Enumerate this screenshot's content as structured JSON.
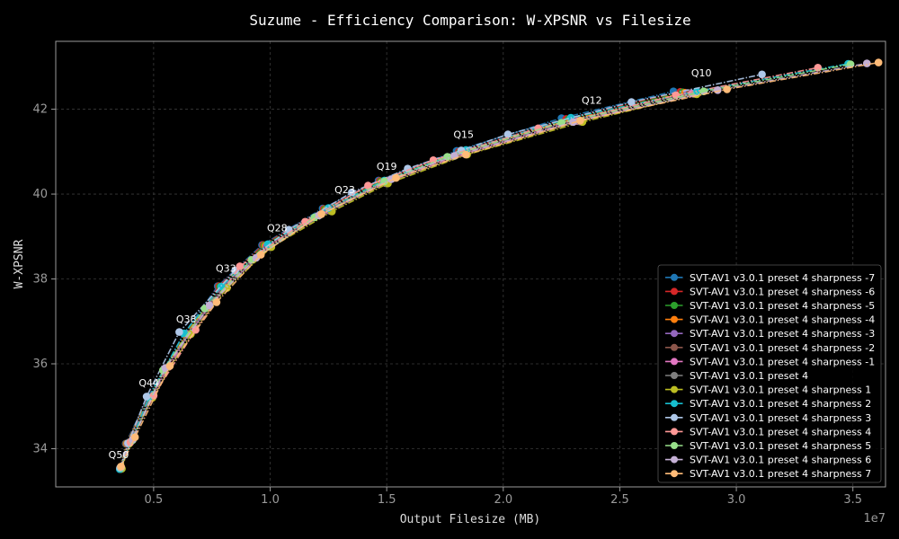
{
  "chart_data": {
    "type": "line",
    "title": "Suzume - Efficiency Comparison: W-XPSNR vs Filesize",
    "xlabel": "Output Filesize (MB)",
    "ylabel": "W-XPSNR",
    "x_offset_label": "1e7",
    "xlim": [
      0.08,
      3.64
    ],
    "ylim": [
      33.1,
      43.6
    ],
    "x_ticks": [
      0.5,
      1.0,
      1.5,
      2.0,
      2.5,
      3.0,
      3.5
    ],
    "x_tick_labels": [
      "0.5",
      "1.0",
      "1.5",
      "2.0",
      "2.5",
      "3.0",
      "3.5"
    ],
    "y_ticks": [
      34,
      36,
      38,
      40,
      42
    ],
    "y_tick_labels": [
      "34",
      "36",
      "38",
      "40",
      "42"
    ],
    "grid": true,
    "legend_position": "lower-right",
    "annotations": [
      {
        "text": "Q50",
        "x": 0.35,
        "y": 33.5
      },
      {
        "text": "Q44",
        "x": 0.48,
        "y": 35.2
      },
      {
        "text": "Q38",
        "x": 0.64,
        "y": 36.7
      },
      {
        "text": "Q33",
        "x": 0.81,
        "y": 37.9
      },
      {
        "text": "Q28",
        "x": 1.03,
        "y": 38.85
      },
      {
        "text": "Q23",
        "x": 1.32,
        "y": 39.75
      },
      {
        "text": "Q19",
        "x": 1.5,
        "y": 40.3
      },
      {
        "text": "Q15",
        "x": 1.83,
        "y": 41.05
      },
      {
        "text": "Q12",
        "x": 2.38,
        "y": 41.85
      },
      {
        "text": "Q10",
        "x": 2.85,
        "y": 42.5
      }
    ],
    "series": [
      {
        "name": "SVT-AV1 v3.0.1 preset 4 sharpness -7",
        "color": "#1f77b4",
        "x": [
          0.355,
          0.38,
          0.475,
          0.63,
          0.775,
          0.965,
          1.225,
          1.465,
          1.8,
          2.25,
          2.73
        ],
        "y": [
          33.52,
          34.12,
          35.2,
          36.7,
          37.83,
          38.8,
          39.66,
          40.32,
          41.02,
          41.79,
          42.42
        ]
      },
      {
        "name": "SVT-AV1 v3.0.1 preset 4 sharpness -6",
        "color": "#d62728",
        "x": [
          0.356,
          0.382,
          0.478,
          0.635,
          0.78,
          0.97,
          1.23,
          1.47,
          1.81,
          2.27,
          2.76
        ],
        "y": [
          33.52,
          34.12,
          35.2,
          36.7,
          37.83,
          38.8,
          39.65,
          40.31,
          41.0,
          41.77,
          42.41
        ]
      },
      {
        "name": "SVT-AV1 v3.0.1 preset 4 sharpness -5",
        "color": "#2ca02c",
        "x": [
          0.357,
          0.384,
          0.48,
          0.638,
          0.785,
          0.975,
          1.235,
          1.475,
          1.815,
          2.28,
          2.77
        ],
        "y": [
          33.52,
          34.12,
          35.2,
          36.7,
          37.82,
          38.79,
          39.64,
          40.3,
          40.99,
          41.76,
          42.4
        ]
      },
      {
        "name": "SVT-AV1 v3.0.1 preset 4 sharpness -4",
        "color": "#ff7f0e",
        "x": [
          0.358,
          0.386,
          0.482,
          0.64,
          0.79,
          0.98,
          1.24,
          1.48,
          1.82,
          2.29,
          2.78
        ],
        "y": [
          33.52,
          34.12,
          35.2,
          36.7,
          37.82,
          38.78,
          39.63,
          40.29,
          40.98,
          41.75,
          42.39
        ]
      },
      {
        "name": "SVT-AV1 v3.0.1 preset 4 sharpness -3",
        "color": "#9467bd",
        "x": [
          0.36,
          0.388,
          0.485,
          0.645,
          0.795,
          0.985,
          1.245,
          1.485,
          1.825,
          2.3,
          2.79
        ],
        "y": [
          33.53,
          34.12,
          35.2,
          36.7,
          37.81,
          38.77,
          39.62,
          40.28,
          40.97,
          41.74,
          42.38
        ]
      },
      {
        "name": "SVT-AV1 v3.0.1 preset 4 sharpness -2",
        "color": "#8c564b",
        "x": [
          0.361,
          0.39,
          0.487,
          0.648,
          0.8,
          0.99,
          1.25,
          1.49,
          1.83,
          2.31,
          2.8
        ],
        "y": [
          33.53,
          34.12,
          35.2,
          36.7,
          37.8,
          38.77,
          39.62,
          40.27,
          40.96,
          41.73,
          42.38
        ]
      },
      {
        "name": "SVT-AV1 v3.0.1 preset 4 sharpness -1",
        "color": "#e377c2",
        "x": [
          0.362,
          0.392,
          0.49,
          0.65,
          0.805,
          0.995,
          1.255,
          1.495,
          1.835,
          2.32,
          2.81
        ],
        "y": [
          33.53,
          34.12,
          35.2,
          36.7,
          37.8,
          38.76,
          39.61,
          40.26,
          40.95,
          41.72,
          42.37
        ]
      },
      {
        "name": "SVT-AV1 v3.0.1 preset 4",
        "color": "#7f7f7f",
        "x": [
          0.363,
          0.394,
          0.492,
          0.655,
          0.81,
          1.0,
          1.26,
          1.5,
          1.84,
          2.33,
          2.82
        ],
        "y": [
          33.53,
          34.12,
          35.2,
          36.7,
          37.79,
          38.75,
          39.6,
          40.25,
          40.94,
          41.71,
          42.36
        ]
      },
      {
        "name": "SVT-AV1 v3.0.1 preset 4 sharpness 1",
        "color": "#bcbd22",
        "x": [
          0.364,
          0.396,
          0.495,
          0.66,
          0.815,
          1.005,
          1.265,
          1.505,
          1.845,
          2.34,
          2.83
        ],
        "y": [
          33.53,
          34.12,
          35.2,
          36.7,
          37.79,
          38.75,
          39.59,
          40.25,
          40.93,
          41.7,
          42.35
        ]
      },
      {
        "name": "SVT-AV1 v3.0.1 preset 4 sharpness 2",
        "color": "#17becf",
        "x": [
          0.355,
          0.4,
          0.48,
          0.63,
          0.79,
          0.99,
          1.25,
          1.49,
          1.84,
          2.29,
          2.83,
          3.48
        ],
        "y": [
          33.52,
          34.15,
          35.21,
          36.72,
          37.82,
          38.82,
          39.67,
          40.32,
          41.04,
          41.8,
          42.42,
          43.07
        ]
      },
      {
        "name": "SVT-AV1 v3.0.1 preset 4 sharpness 3",
        "color": "#aec7e8",
        "x": [
          0.356,
          0.39,
          0.47,
          0.61,
          0.85,
          1.08,
          1.35,
          1.59,
          1.82,
          2.02,
          2.55,
          3.11
        ],
        "y": [
          33.55,
          34.13,
          35.23,
          36.75,
          38.2,
          39.16,
          40.04,
          40.6,
          41.03,
          41.41,
          42.17,
          42.82
        ]
      },
      {
        "name": "SVT-AV1 v3.0.1 preset 4 sharpness 4",
        "color": "#ff9896",
        "x": [
          0.36,
          0.4,
          0.5,
          0.68,
          0.87,
          1.15,
          1.42,
          1.7,
          2.15,
          2.74,
          3.35
        ],
        "y": [
          33.56,
          34.15,
          35.25,
          36.8,
          38.3,
          39.35,
          40.2,
          40.8,
          41.55,
          42.33,
          42.98
        ]
      },
      {
        "name": "SVT-AV1 v3.0.1 preset 4 sharpness 5",
        "color": "#98df8a",
        "x": [
          0.36,
          0.41,
          0.54,
          0.72,
          0.92,
          1.19,
          1.49,
          1.76,
          2.25,
          2.86,
          3.49
        ],
        "y": [
          33.56,
          34.2,
          35.85,
          37.3,
          38.45,
          39.45,
          40.3,
          40.88,
          41.68,
          42.42,
          43.06
        ]
      },
      {
        "name": "SVT-AV1 v3.0.1 preset 4 sharpness 6",
        "color": "#c5b0d5",
        "x": [
          0.36,
          0.41,
          0.55,
          0.74,
          0.94,
          1.21,
          1.52,
          1.79,
          2.3,
          2.92,
          3.56
        ],
        "y": [
          33.57,
          34.22,
          35.9,
          37.38,
          38.5,
          39.5,
          40.35,
          40.9,
          41.7,
          42.45,
          43.08
        ]
      },
      {
        "name": "SVT-AV1 v3.0.1 preset 4 sharpness 7",
        "color": "#ffbb78",
        "x": [
          0.36,
          0.42,
          0.57,
          0.77,
          0.96,
          1.22,
          1.54,
          1.84,
          2.33,
          2.96,
          3.61
        ],
        "y": [
          33.58,
          34.27,
          35.95,
          37.45,
          38.57,
          39.53,
          40.38,
          40.93,
          41.73,
          42.47,
          43.1
        ]
      }
    ]
  }
}
